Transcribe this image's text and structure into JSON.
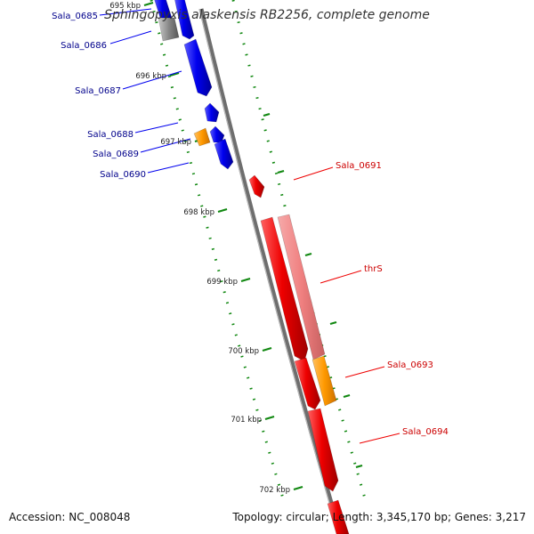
{
  "map": {
    "title": "Sphingopyxis alaskensis RB2256, complete genome",
    "accession": "Accession: NC_008048",
    "topology": "Topology: circular; Length: 3,345,170 bp; Genes: 3,217"
  },
  "colors": {
    "forward_strand": "#0000ee",
    "reverse_strand": "#ee0000",
    "highlight": "#ff9900",
    "reverse_light": "#f08080",
    "tick": "#118811",
    "backbone": "#888888"
  },
  "coordinate_labels": [
    "695 kbp",
    "696 kbp",
    "697 kbp",
    "698 kbp",
    "699 kbp",
    "700 kbp",
    "701 kbp",
    "702 kbp"
  ],
  "forward_genes": [
    {
      "label": "Sala_0685",
      "icon": "gene-arrow-forward"
    },
    {
      "label": "Sala_0686",
      "icon": "gene-arrow-forward"
    },
    {
      "label": "Sala_0687",
      "icon": "gene-arrow-forward"
    },
    {
      "label": "Sala_0688",
      "icon": "gene-arrow-forward"
    },
    {
      "label": "Sala_0689",
      "icon": "gene-arrow-forward-highlighted"
    },
    {
      "label": "Sala_0690",
      "icon": "gene-arrow-forward"
    }
  ],
  "reverse_genes": [
    {
      "label": "Sala_0691",
      "icon": "gene-arrow-reverse"
    },
    {
      "label": "thrS",
      "icon": "gene-arrow-reverse"
    },
    {
      "label": "Sala_0693",
      "icon": "gene-arrow-reverse-highlighted"
    },
    {
      "label": "Sala_0694",
      "icon": "gene-arrow-reverse"
    }
  ]
}
